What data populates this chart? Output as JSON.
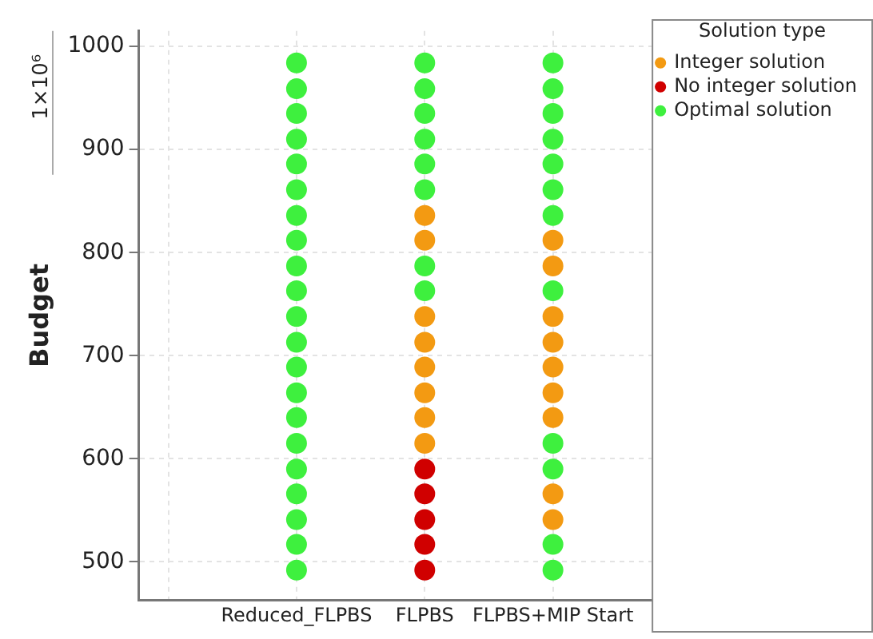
{
  "chart_data": {
    "type": "scatter",
    "ylabel": "Budget",
    "annotations": [
      "1×10⁶"
    ],
    "legend_title": "Solution type",
    "legend": "top right",
    "grid": true,
    "marker": "circle",
    "categories": [
      null,
      "Reduced_FLPBS",
      "FLPBS",
      "FLPBS+MIP Start"
    ],
    "ylim": [
      463,
      1015
    ],
    "yticks": [
      500,
      600,
      700,
      800,
      900,
      1000
    ],
    "series": [
      {
        "name": "Integer solution",
        "color": "#f39a12",
        "x": [
          "FLPBS",
          "FLPBS",
          "FLPBS",
          "FLPBS",
          "FLPBS",
          "FLPBS",
          "FLPBS",
          "FLPBS",
          "FLPBS+MIP Start",
          "FLPBS+MIP Start",
          "FLPBS+MIP Start",
          "FLPBS+MIP Start",
          "FLPBS+MIP Start",
          "FLPBS+MIP Start",
          "FLPBS+MIP Start",
          "FLPBS+MIP Start",
          "FLPBS+MIP Start"
        ],
        "values": [
          615,
          640,
          664,
          689,
          713,
          738,
          812,
          836,
          541,
          566,
          640,
          664,
          689,
          713,
          738,
          787,
          812
        ]
      },
      {
        "name": "No integer solution",
        "color": "#d00000",
        "x": [
          "FLPBS",
          "FLPBS",
          "FLPBS",
          "FLPBS",
          "FLPBS"
        ],
        "values": [
          492,
          517,
          541,
          566,
          590
        ]
      },
      {
        "name": "Optimal solution",
        "color": "#3ef03e",
        "x": [
          "Reduced_FLPBS",
          "Reduced_FLPBS",
          "Reduced_FLPBS",
          "Reduced_FLPBS",
          "Reduced_FLPBS",
          "Reduced_FLPBS",
          "Reduced_FLPBS",
          "Reduced_FLPBS",
          "Reduced_FLPBS",
          "Reduced_FLPBS",
          "Reduced_FLPBS",
          "Reduced_FLPBS",
          "Reduced_FLPBS",
          "Reduced_FLPBS",
          "Reduced_FLPBS",
          "Reduced_FLPBS",
          "Reduced_FLPBS",
          "Reduced_FLPBS",
          "Reduced_FLPBS",
          "Reduced_FLPBS",
          "Reduced_FLPBS",
          "FLPBS",
          "FLPBS",
          "FLPBS",
          "FLPBS",
          "FLPBS",
          "FLPBS",
          "FLPBS",
          "FLPBS",
          "FLPBS+MIP Start",
          "FLPBS+MIP Start",
          "FLPBS+MIP Start",
          "FLPBS+MIP Start",
          "FLPBS+MIP Start",
          "FLPBS+MIP Start",
          "FLPBS+MIP Start",
          "FLPBS+MIP Start",
          "FLPBS+MIP Start",
          "FLPBS+MIP Start",
          "FLPBS+MIP Start",
          "FLPBS+MIP Start"
        ],
        "values": [
          492,
          517,
          541,
          566,
          590,
          615,
          640,
          664,
          689,
          713,
          738,
          763,
          787,
          812,
          836,
          861,
          886,
          910,
          935,
          959,
          984,
          763,
          787,
          861,
          886,
          910,
          935,
          959,
          984,
          492,
          517,
          590,
          615,
          763,
          836,
          861,
          886,
          910,
          935,
          959,
          984
        ]
      }
    ]
  }
}
